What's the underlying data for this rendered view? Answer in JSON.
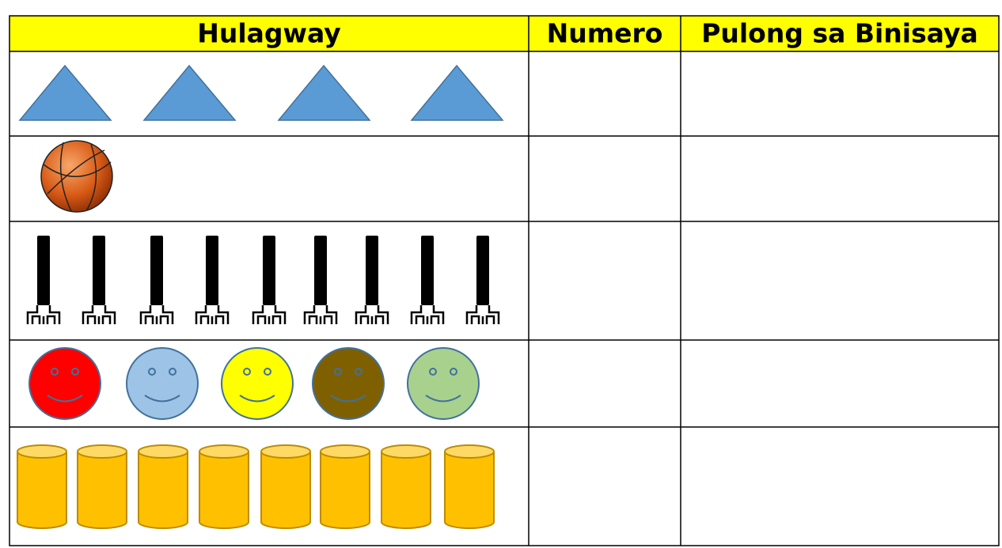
{
  "table": {
    "header": [
      "Hulagway",
      "Numero",
      "Pulong sa Binisaya"
    ]
  }
}
